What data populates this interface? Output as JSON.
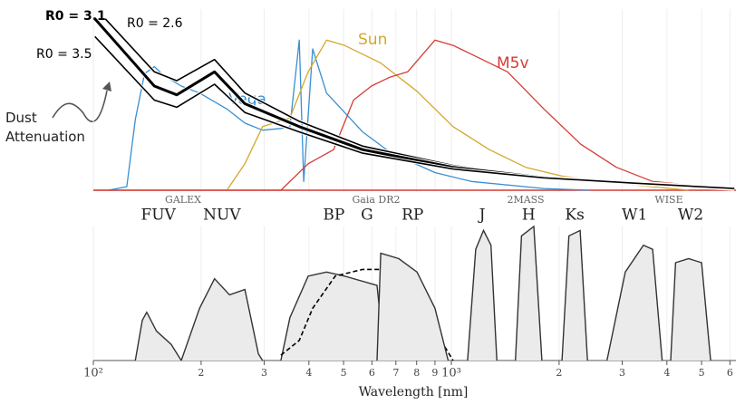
{
  "chart_data": [
    {
      "type": "line",
      "xscale": "log",
      "xlim": [
        100,
        6200
      ],
      "ylim": [
        0,
        1
      ],
      "annotations": [
        "Dust Attenuation"
      ],
      "series": [
        {
          "name": "Vega",
          "color": "#3a8fd0",
          "linewidth": 1.3,
          "x": [
            110,
            124,
            131,
            139,
            148,
            157,
            176,
            198,
            236,
            265,
            297,
            334,
            354,
            376,
            387,
            410,
            448,
            565,
            680,
            900,
            1137,
            1813,
            2427
          ],
          "values": [
            0,
            0.02,
            0.4,
            0.66,
            0.7,
            0.65,
            0.59,
            0.55,
            0.46,
            0.38,
            0.34,
            0.35,
            0.36,
            0.85,
            0.05,
            0.8,
            0.55,
            0.33,
            0.21,
            0.1,
            0.05,
            0.01,
            0
          ]
        },
        {
          "name": "Sun",
          "color": "#d4a72c",
          "linewidth": 1.3,
          "x": [
            236,
            265,
            297,
            354,
            398,
            448,
            503,
            635,
            802,
            1011,
            1277,
            1614,
            2037,
            3247,
            4600
          ],
          "values": [
            0,
            0.15,
            0.36,
            0.41,
            0.67,
            0.85,
            0.82,
            0.72,
            0.56,
            0.36,
            0.23,
            0.13,
            0.08,
            0.03,
            0
          ]
        },
        {
          "name": "M5v",
          "color": "#d43c35",
          "linewidth": 1.3,
          "x": [
            100,
            334,
            398,
            469,
            533,
            598,
            673,
            755,
            900,
            1011,
            1137,
            1435,
            1813,
            2300,
            2891,
            3648,
            5178,
            6166
          ],
          "values": [
            0,
            0,
            0.15,
            0.23,
            0.51,
            0.59,
            0.64,
            0.67,
            0.85,
            0.82,
            0.77,
            0.67,
            0.46,
            0.26,
            0.13,
            0.05,
            0.02,
            0.01
          ]
        },
        {
          "name": "R0 = 2.6",
          "color": "#000000",
          "linewidth": 1.6,
          "x": [
            108,
            148,
            171,
            218,
            265,
            376,
            565,
            1011,
            1813,
            3247,
            6166
          ],
          "values": [
            0.97,
            0.67,
            0.62,
            0.74,
            0.55,
            0.39,
            0.25,
            0.14,
            0.07,
            0.04,
            0.01
          ]
        },
        {
          "name": "R0 = 3.1",
          "color": "#000000",
          "linewidth": 3,
          "x": [
            101,
            148,
            171,
            218,
            265,
            376,
            565,
            1011,
            1813,
            3247,
            6166
          ],
          "values": [
            0.97,
            0.59,
            0.54,
            0.67,
            0.49,
            0.36,
            0.23,
            0.13,
            0.07,
            0.04,
            0.01
          ]
        },
        {
          "name": "R0 = 3.5",
          "color": "#000000",
          "linewidth": 1.6,
          "x": [
            101,
            148,
            171,
            218,
            265,
            376,
            565,
            1011,
            1813,
            3247,
            6166
          ],
          "values": [
            0.87,
            0.51,
            0.47,
            0.6,
            0.44,
            0.33,
            0.21,
            0.12,
            0.07,
            0.04,
            0.01
          ]
        }
      ]
    },
    {
      "type": "area",
      "xscale": "log",
      "xlim": [
        100,
        6200
      ],
      "ylim": [
        0,
        1
      ],
      "grid": true,
      "xlabel": "Wavelength [nm]",
      "xticks": [
        {
          "value": 100,
          "label": "10²"
        },
        {
          "value": 200,
          "label": "2"
        },
        {
          "value": 300,
          "label": "3"
        },
        {
          "value": 400,
          "label": "4"
        },
        {
          "value": 500,
          "label": "5"
        },
        {
          "value": 600,
          "label": "6"
        },
        {
          "value": 700,
          "label": "7"
        },
        {
          "value": 800,
          "label": "8"
        },
        {
          "value": 900,
          "label": "9"
        },
        {
          "value": 1000,
          "label": "10³"
        },
        {
          "value": 2000,
          "label": "2"
        },
        {
          "value": 3000,
          "label": "3"
        },
        {
          "value": 4000,
          "label": "4"
        },
        {
          "value": 5000,
          "label": "5"
        },
        {
          "value": 6000,
          "label": "6"
        }
      ],
      "surveys": [
        "GALEX",
        "Gaia DR2",
        "2MASS",
        "WISE"
      ],
      "series": [
        {
          "name": "FUV",
          "x": [
            131,
            137,
            141,
            150,
            165,
            176
          ],
          "values": [
            0,
            0.3,
            0.36,
            0.22,
            0.12,
            0
          ]
        },
        {
          "name": "NUV",
          "x": [
            176,
            198,
            218,
            240,
            265,
            289,
            297
          ],
          "values": [
            0,
            0.39,
            0.61,
            0.49,
            0.53,
            0.05,
            0
          ]
        },
        {
          "name": "BP",
          "x": [
            334,
            354,
            398,
            448,
            503,
            620,
            650,
            660
          ],
          "values": [
            0,
            0.32,
            0.63,
            0.66,
            0.63,
            0.56,
            0.02,
            0
          ]
        },
        {
          "name": "G",
          "dashed": true,
          "x": [
            334,
            376,
            410,
            474,
            565,
            713,
            850,
            950,
            1011
          ],
          "values": [
            0.04,
            0.15,
            0.39,
            0.63,
            0.68,
            0.68,
            0.46,
            0.12,
            0
          ]
        },
        {
          "name": "RP",
          "x": [
            620,
            635,
            713,
            802,
            900,
            980
          ],
          "values": [
            0,
            0.8,
            0.76,
            0.66,
            0.39,
            0
          ]
        },
        {
          "name": "J",
          "x": [
            1110,
            1170,
            1230,
            1290,
            1340
          ],
          "values": [
            0,
            0.83,
            0.97,
            0.86,
            0
          ]
        },
        {
          "name": "H",
          "x": [
            1510,
            1570,
            1700,
            1790
          ],
          "values": [
            0,
            0.93,
            1.0,
            0
          ]
        },
        {
          "name": "Ks",
          "x": [
            2037,
            2130,
            2290,
            2400
          ],
          "values": [
            0,
            0.93,
            0.97,
            0
          ]
        },
        {
          "name": "W1",
          "x": [
            2720,
            3060,
            3440,
            3650,
            3880
          ],
          "values": [
            0,
            0.66,
            0.86,
            0.83,
            0
          ]
        },
        {
          "name": "W2",
          "x": [
            4100,
            4230,
            4600,
            5000,
            5300
          ],
          "values": [
            0,
            0.73,
            0.76,
            0.73,
            0
          ]
        }
      ]
    }
  ]
}
